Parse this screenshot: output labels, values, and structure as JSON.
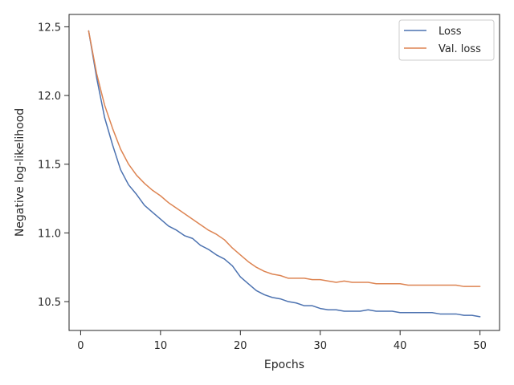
{
  "chart_data": {
    "type": "line",
    "title": "",
    "xlabel": "Epochs",
    "ylabel": "Negative log-likelihood",
    "xlim": [
      -1.45,
      52.45
    ],
    "ylim": [
      10.29,
      12.59
    ],
    "xticks": [
      0,
      10,
      20,
      30,
      40,
      50
    ],
    "yticks": [
      10.5,
      11.0,
      11.5,
      12.0,
      12.5
    ],
    "ytick_labels": [
      "10.5",
      "11.0",
      "11.5",
      "12.0",
      "12.5"
    ],
    "grid": false,
    "legend_position": "top-right",
    "x": [
      1,
      2,
      3,
      4,
      5,
      6,
      7,
      8,
      9,
      10,
      11,
      12,
      13,
      14,
      15,
      16,
      17,
      18,
      19,
      20,
      21,
      22,
      23,
      24,
      25,
      26,
      27,
      28,
      29,
      30,
      31,
      32,
      33,
      34,
      35,
      36,
      37,
      38,
      39,
      40,
      41,
      42,
      43,
      44,
      45,
      46,
      47,
      48,
      49,
      50
    ],
    "series": [
      {
        "name": "Loss",
        "color": "#4c72b0",
        "values": [
          12.47,
          12.13,
          11.84,
          11.64,
          11.46,
          11.35,
          11.28,
          11.2,
          11.15,
          11.1,
          11.05,
          11.02,
          10.98,
          10.96,
          10.91,
          10.88,
          10.84,
          10.81,
          10.76,
          10.68,
          10.63,
          10.58,
          10.55,
          10.53,
          10.52,
          10.5,
          10.49,
          10.47,
          10.47,
          10.45,
          10.44,
          10.44,
          10.43,
          10.43,
          10.43,
          10.44,
          10.43,
          10.43,
          10.43,
          10.42,
          10.42,
          10.42,
          10.42,
          10.42,
          10.41,
          10.41,
          10.41,
          10.4,
          10.4,
          10.39
        ]
      },
      {
        "name": "Val. loss",
        "color": "#dd8452",
        "values": [
          12.47,
          12.16,
          11.93,
          11.76,
          11.61,
          11.5,
          11.42,
          11.36,
          11.31,
          11.27,
          11.22,
          11.18,
          11.14,
          11.1,
          11.06,
          11.02,
          10.99,
          10.95,
          10.89,
          10.84,
          10.79,
          10.75,
          10.72,
          10.7,
          10.69,
          10.67,
          10.67,
          10.67,
          10.66,
          10.66,
          10.65,
          10.64,
          10.65,
          10.64,
          10.64,
          10.64,
          10.63,
          10.63,
          10.63,
          10.63,
          10.62,
          10.62,
          10.62,
          10.62,
          10.62,
          10.62,
          10.62,
          10.61,
          10.61,
          10.61
        ]
      }
    ]
  }
}
